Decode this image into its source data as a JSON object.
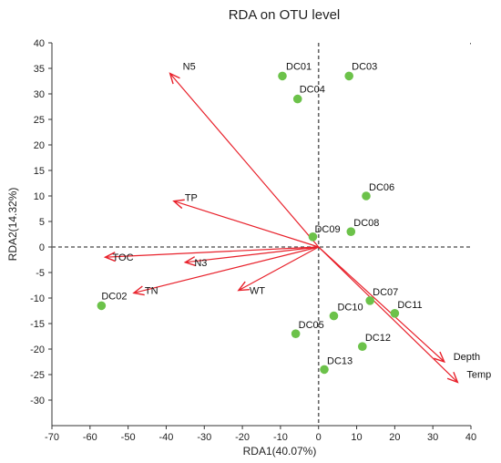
{
  "chart_data": {
    "type": "scatter",
    "title": "RDA on OTU level",
    "xlabel": "RDA1(40.07%)",
    "ylabel": "RDA2(14.32%)",
    "xlim": [
      -70,
      40
    ],
    "ylim": [
      -35,
      40
    ],
    "xticks": [
      "-70",
      "-60",
      "-50",
      "-40",
      "-30",
      "-20",
      "-10",
      "0",
      "10",
      "20",
      "30",
      "40"
    ],
    "yticks": [
      "-30",
      "-25",
      "-20",
      "-15",
      "-10",
      "-5",
      "0",
      "5",
      "10",
      "15",
      "20",
      "25",
      "30",
      "35",
      "40"
    ],
    "point_color": "#6cc24a",
    "arrow_color": "#e8202a",
    "samples": [
      {
        "label": "DC01",
        "x": -9.5,
        "y": 33.5
      },
      {
        "label": "DC03",
        "x": 8.0,
        "y": 33.5
      },
      {
        "label": "DC04",
        "x": -5.5,
        "y": 29.0
      },
      {
        "label": "DC06",
        "x": 12.5,
        "y": 10.0
      },
      {
        "label": "DC09",
        "x": -1.5,
        "y": 2.0
      },
      {
        "label": "DC08",
        "x": 8.5,
        "y": 3.0
      },
      {
        "label": "DC02",
        "x": -57.0,
        "y": -11.5
      },
      {
        "label": "DC07",
        "x": 13.5,
        "y": -10.5
      },
      {
        "label": "DC11",
        "x": 20.0,
        "y": -13.0
      },
      {
        "label": "DC10",
        "x": 4.0,
        "y": -13.5
      },
      {
        "label": "DC05",
        "x": -6.0,
        "y": -17.0
      },
      {
        "label": "DC12",
        "x": 11.5,
        "y": -19.5
      },
      {
        "label": "DC13",
        "x": 1.5,
        "y": -24.0
      }
    ],
    "env_factors": [
      {
        "label": "N5",
        "x": -39.0,
        "y": 34.0
      },
      {
        "label": "TP",
        "x": -38.0,
        "y": 9.0
      },
      {
        "label": "TOC",
        "x": -56.0,
        "y": -2.0
      },
      {
        "label": "N3",
        "x": -35.0,
        "y": -3.0
      },
      {
        "label": "TN",
        "x": -48.5,
        "y": -9.0
      },
      {
        "label": "WT",
        "x": -21.0,
        "y": -8.5
      },
      {
        "label": "Depth",
        "x": 33.0,
        "y": -22.5
      },
      {
        "label": "Temp",
        "x": 36.5,
        "y": -26.5
      }
    ]
  }
}
